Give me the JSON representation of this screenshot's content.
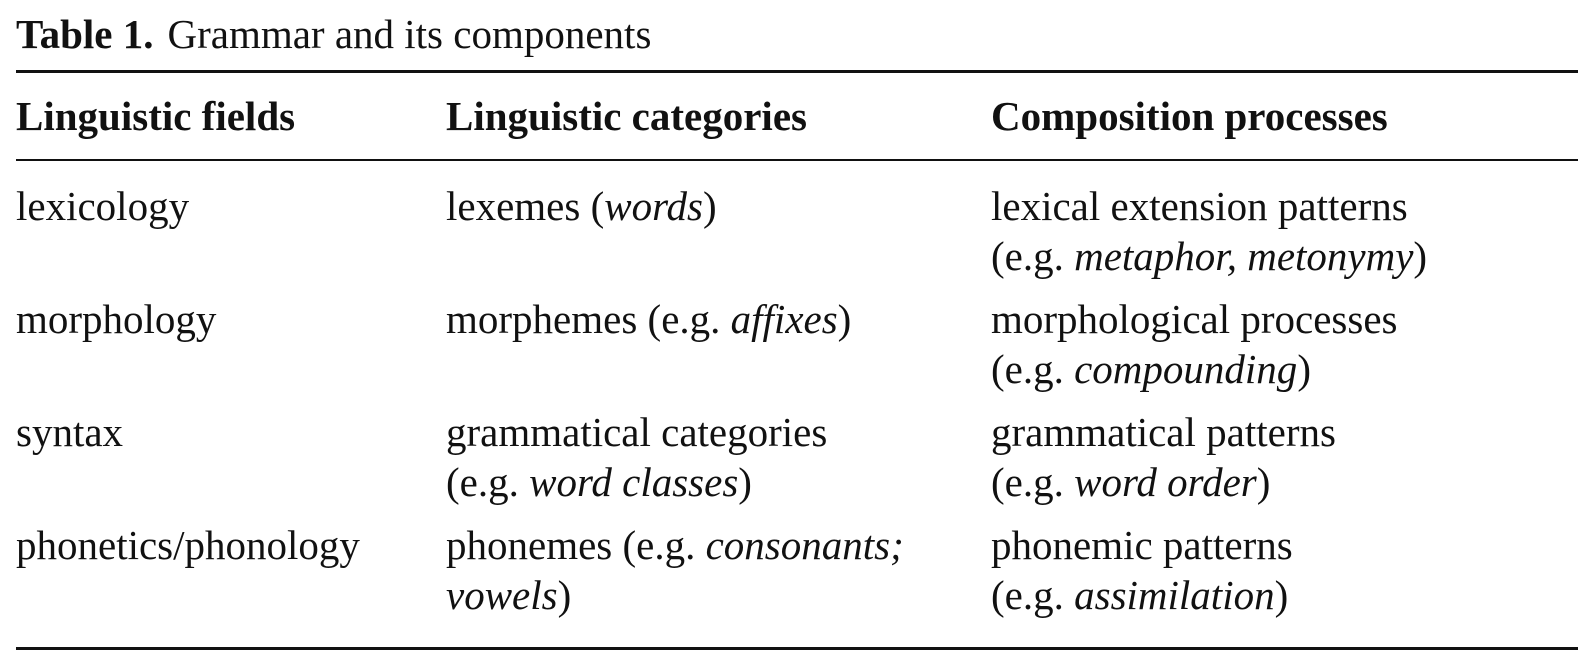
{
  "caption": {
    "label": "Table 1.",
    "title": "Grammar and its components"
  },
  "headers": [
    "Linguistic fields",
    "Linguistic categories",
    "Composition processes"
  ],
  "rows": [
    {
      "field": "lexicology",
      "category": [
        {
          "t": "lexemes ("
        },
        {
          "t": "words",
          "i": true
        },
        {
          "t": ")"
        }
      ],
      "process": [
        {
          "t": "lexical extension patterns"
        },
        {
          "br": true
        },
        {
          "t": "(e.g. "
        },
        {
          "t": "metaphor, metonymy",
          "i": true
        },
        {
          "t": ")"
        }
      ]
    },
    {
      "field": "morphology",
      "category": [
        {
          "t": "morphemes (e.g. "
        },
        {
          "t": "affixes",
          "i": true
        },
        {
          "t": ")"
        }
      ],
      "process": [
        {
          "t": "morphological processes"
        },
        {
          "br": true
        },
        {
          "t": "(e.g. "
        },
        {
          "t": "compounding",
          "i": true
        },
        {
          "t": ")"
        }
      ]
    },
    {
      "field": "syntax",
      "category": [
        {
          "t": "grammatical categories"
        },
        {
          "br": true
        },
        {
          "t": "(e.g. "
        },
        {
          "t": "word classes",
          "i": true
        },
        {
          "t": ")"
        }
      ],
      "process": [
        {
          "t": "grammatical patterns"
        },
        {
          "br": true
        },
        {
          "t": "(e.g. "
        },
        {
          "t": "word order",
          "i": true
        },
        {
          "t": ")"
        }
      ]
    },
    {
      "field": "phonetics/phonology",
      "category": [
        {
          "t": "phonemes (e.g. "
        },
        {
          "t": "consonants;",
          "i": true
        },
        {
          "br": true
        },
        {
          "t": "vowels",
          "i": true
        },
        {
          "t": ")"
        }
      ],
      "process": [
        {
          "t": "phonemic patterns"
        },
        {
          "br": true
        },
        {
          "t": "(e.g. "
        },
        {
          "t": "assimilation",
          "i": true
        },
        {
          "t": ")"
        }
      ]
    }
  ]
}
